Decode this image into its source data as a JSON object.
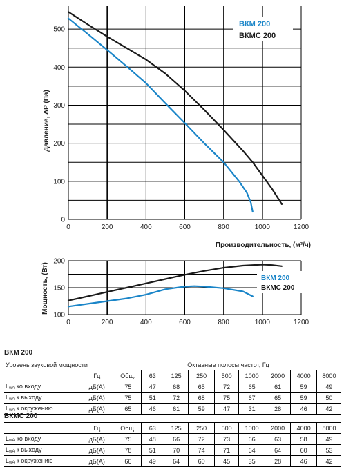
{
  "chart_data": [
    {
      "type": "line",
      "xlabel": "Производительность, (м³/ч)",
      "ylabel": "Давление, ΔP (Па)",
      "xlim": [
        0,
        1200
      ],
      "ylim": [
        0,
        560
      ],
      "xticks": [
        "0",
        "200",
        "400",
        "600",
        "800",
        "1000",
        "1200"
      ],
      "yticks": [
        "0",
        "100",
        "200",
        "300",
        "400",
        "500"
      ],
      "grid": true,
      "legend_position": "top-right",
      "series": [
        {
          "name": "ВКМ 200",
          "color": "#1a85c8",
          "x": [
            0,
            100,
            200,
            300,
            400,
            500,
            600,
            700,
            800,
            880,
            920,
            940,
            950
          ],
          "y": [
            528,
            487,
            445,
            402,
            358,
            305,
            253,
            200,
            150,
            100,
            70,
            45,
            20
          ]
        },
        {
          "name": "ВКМС 200",
          "color": "#1a1a1a",
          "x": [
            0,
            100,
            200,
            300,
            400,
            500,
            600,
            700,
            800,
            900,
            950,
            1000,
            1050,
            1100
          ],
          "y": [
            545,
            512,
            480,
            450,
            420,
            383,
            338,
            288,
            235,
            180,
            150,
            115,
            80,
            40
          ]
        }
      ]
    },
    {
      "type": "line",
      "xlabel": "",
      "ylabel": "Мощность, (Вт)",
      "xlim": [
        0,
        1200
      ],
      "ylim": [
        100,
        200
      ],
      "xticks": [
        "0",
        "200",
        "400",
        "600",
        "800",
        "1000",
        "1200"
      ],
      "yticks": [
        "100",
        "150",
        "200"
      ],
      "grid": true,
      "legend_position": "right",
      "series": [
        {
          "name": "ВКМ 200",
          "color": "#1a85c8",
          "x": [
            0,
            100,
            200,
            300,
            400,
            500,
            600,
            650,
            700,
            800,
            900,
            950
          ],
          "y": [
            115,
            120,
            125,
            130,
            137,
            147,
            152,
            153,
            152,
            149,
            143,
            134
          ]
        },
        {
          "name": "ВКМС 200",
          "color": "#1a1a1a",
          "x": [
            0,
            100,
            200,
            300,
            400,
            500,
            600,
            700,
            800,
            900,
            1000,
            1050,
            1100
          ],
          "y": [
            126,
            134,
            142,
            150,
            158,
            166,
            174,
            181,
            187,
            191,
            193,
            192,
            190
          ]
        }
      ]
    }
  ],
  "tables": [
    {
      "title": "ВКМ 200",
      "header_label": "Уровень звуковой мощности",
      "header_unit": "",
      "header_total": "",
      "group_label": "Октавные полосы частот, Гц",
      "show_freqs": false,
      "subheader": [
        "Гц",
        "Общ.",
        "63",
        "125",
        "250",
        "500",
        "1000",
        "2000",
        "4000",
        "8000"
      ],
      "rows": [
        {
          "label_main": "L",
          "label_sub": "wA",
          "label_rest": " ко входу",
          "unit": "дБ(А)",
          "values": [
            "75",
            "47",
            "68",
            "65",
            "72",
            "65",
            "61",
            "59",
            "49"
          ]
        },
        {
          "label_main": "L",
          "label_sub": "wA",
          "label_rest": " к выходу",
          "unit": "дБ(А)",
          "values": [
            "75",
            "51",
            "72",
            "68",
            "75",
            "67",
            "65",
            "59",
            "50"
          ]
        },
        {
          "label_main": "L",
          "label_sub": "wA",
          "label_rest": " к окружению",
          "unit": "дБ(А)",
          "values": [
            "65",
            "46",
            "61",
            "59",
            "47",
            "31",
            "28",
            "46",
            "42"
          ]
        }
      ]
    },
    {
      "title": "ВКМС 200",
      "header_label": "",
      "header_unit": "Гц",
      "header_total": "Общ.",
      "group_label": "",
      "show_freqs": true,
      "subheader": [
        "Гц",
        "Общ.",
        "63",
        "125",
        "250",
        "500",
        "1000",
        "2000",
        "4000",
        "8000"
      ],
      "rows": [
        {
          "label_main": "L",
          "label_sub": "wA",
          "label_rest": " ко входу",
          "unit": "дБ(А)",
          "values": [
            "75",
            "48",
            "66",
            "72",
            "73",
            "66",
            "63",
            "58",
            "49"
          ]
        },
        {
          "label_main": "L",
          "label_sub": "wA",
          "label_rest": " к выходу",
          "unit": "дБ(А)",
          "values": [
            "78",
            "51",
            "70",
            "74",
            "71",
            "64",
            "64",
            "60",
            "53"
          ]
        },
        {
          "label_main": "L",
          "label_sub": "wA",
          "label_rest": " к окружению",
          "unit": "дБ(А)",
          "values": [
            "66",
            "49",
            "64",
            "60",
            "45",
            "35",
            "28",
            "46",
            "42"
          ]
        }
      ]
    }
  ]
}
